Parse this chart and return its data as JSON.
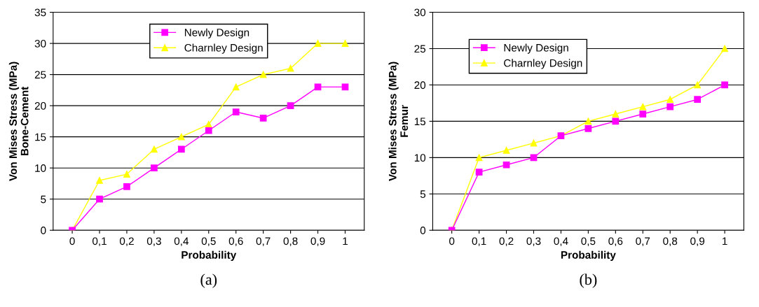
{
  "chart_data": [
    {
      "type": "line",
      "xlabel": "Probability",
      "ylabel": "Von Mises Stress (MPa)\nBone-Cement",
      "categories": [
        "0",
        "0,1",
        "0,2",
        "0,3",
        "0,4",
        "0,5",
        "0,6",
        "0,7",
        "0,8",
        "0,9",
        "1"
      ],
      "ylim": [
        0,
        35
      ],
      "yticks": [
        0,
        5,
        10,
        15,
        20,
        25,
        30,
        35
      ],
      "grid": "y",
      "legend": "top",
      "annotations": [
        "(a)"
      ],
      "series": [
        {
          "name": "Newly Design",
          "color": "#ff00ff",
          "marker": "square",
          "values": [
            0,
            5,
            7,
            10,
            13,
            16,
            19,
            18,
            20,
            23,
            23
          ]
        },
        {
          "name": "Charnley Design",
          "color": "#ffff00",
          "marker": "triangle",
          "values": [
            0,
            8,
            9,
            13,
            15,
            17,
            23,
            25,
            26,
            30,
            30
          ]
        }
      ]
    },
    {
      "type": "line",
      "xlabel": "Probability",
      "ylabel": "Von Mises Stress (MPa)\nFemur",
      "categories": [
        "0",
        "0,1",
        "0,2",
        "0,3",
        "0,4",
        "0,5",
        "0,6",
        "0,7",
        "0,8",
        "0,9",
        "1"
      ],
      "ylim": [
        0,
        30
      ],
      "yticks": [
        0,
        5,
        10,
        15,
        20,
        25,
        30
      ],
      "grid": "y",
      "legend": "top left",
      "annotations": [
        "(b)"
      ],
      "series": [
        {
          "name": "Newly Design",
          "color": "#ff00ff",
          "marker": "square",
          "values": [
            0,
            8,
            9,
            10,
            13,
            14,
            15,
            16,
            17,
            18,
            20
          ]
        },
        {
          "name": "Charnley Design",
          "color": "#ffff00",
          "marker": "triangle",
          "values": [
            0,
            10,
            11,
            12,
            13,
            15,
            16,
            17,
            18,
            20,
            25
          ]
        }
      ]
    }
  ]
}
